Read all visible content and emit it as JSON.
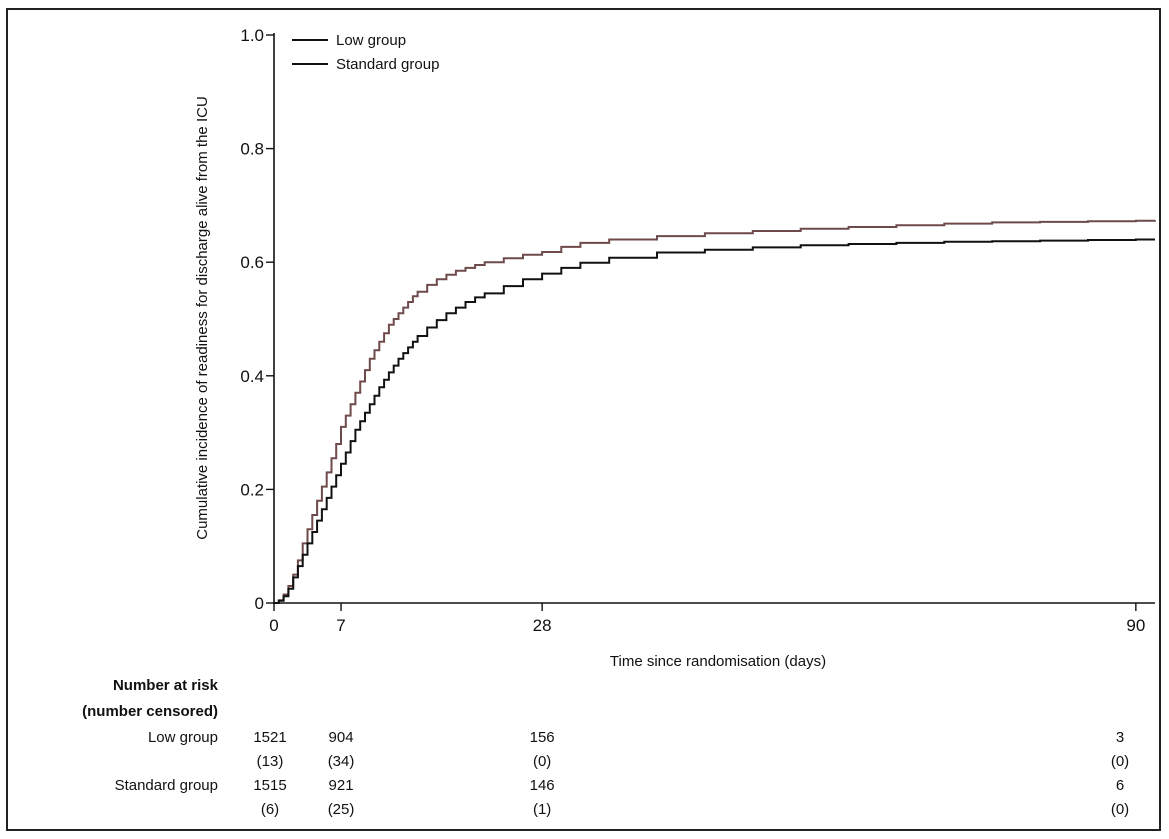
{
  "chart_data": {
    "type": "line",
    "ylabel": "Cumulative incidence of readiness for discharge alive from the ICU",
    "xlabel": "Time since randomisation (days)",
    "xlim": [
      0,
      92
    ],
    "ylim": [
      0,
      1.0
    ],
    "x_ticks": [
      {
        "value": 0,
        "label": "0"
      },
      {
        "value": 7,
        "label": "7"
      },
      {
        "value": 28,
        "label": "28"
      },
      {
        "value": 90,
        "label": "90"
      }
    ],
    "y_ticks": [
      {
        "value": 0,
        "label": "0"
      },
      {
        "value": 0.2,
        "label": "0.2"
      },
      {
        "value": 0.4,
        "label": "0.4"
      },
      {
        "value": 0.6,
        "label": "0.6"
      },
      {
        "value": 0.8,
        "label": "0.8"
      },
      {
        "value": 1.0,
        "label": "1.0"
      }
    ],
    "legend_position": "top-left",
    "series": [
      {
        "name": "Low group",
        "color": "#6e4a4a",
        "x": [
          0,
          0.5,
          1,
          1.5,
          2,
          2.5,
          3,
          3.5,
          4,
          4.5,
          5,
          5.5,
          6,
          6.5,
          7,
          7.5,
          8,
          8.5,
          9,
          9.5,
          10,
          10.5,
          11,
          11.5,
          12,
          12.5,
          13,
          13.5,
          14,
          14.5,
          15,
          16,
          17,
          18,
          19,
          20,
          21,
          22,
          24,
          26,
          28,
          30,
          32,
          35,
          40,
          45,
          50,
          55,
          60,
          65,
          70,
          75,
          80,
          85,
          90,
          92
        ],
        "y": [
          0,
          0.005,
          0.015,
          0.03,
          0.05,
          0.075,
          0.105,
          0.13,
          0.155,
          0.18,
          0.205,
          0.23,
          0.255,
          0.28,
          0.31,
          0.33,
          0.35,
          0.37,
          0.39,
          0.41,
          0.43,
          0.445,
          0.46,
          0.475,
          0.49,
          0.5,
          0.51,
          0.52,
          0.53,
          0.54,
          0.548,
          0.56,
          0.57,
          0.578,
          0.585,
          0.59,
          0.595,
          0.6,
          0.607,
          0.613,
          0.618,
          0.627,
          0.634,
          0.64,
          0.646,
          0.651,
          0.655,
          0.659,
          0.662,
          0.665,
          0.668,
          0.67,
          0.671,
          0.672,
          0.673,
          0.674
        ]
      },
      {
        "name": "Standard group",
        "color": "#111111",
        "x": [
          0,
          0.5,
          1,
          1.5,
          2,
          2.5,
          3,
          3.5,
          4,
          4.5,
          5,
          5.5,
          6,
          6.5,
          7,
          7.5,
          8,
          8.5,
          9,
          9.5,
          10,
          10.5,
          11,
          11.5,
          12,
          12.5,
          13,
          13.5,
          14,
          14.5,
          15,
          16,
          17,
          18,
          19,
          20,
          21,
          22,
          24,
          26,
          28,
          30,
          32,
          35,
          40,
          45,
          50,
          55,
          60,
          65,
          70,
          75,
          80,
          85,
          90,
          92
        ],
        "y": [
          0,
          0.004,
          0.012,
          0.025,
          0.045,
          0.065,
          0.085,
          0.105,
          0.125,
          0.145,
          0.165,
          0.185,
          0.205,
          0.225,
          0.245,
          0.265,
          0.285,
          0.305,
          0.32,
          0.335,
          0.35,
          0.365,
          0.38,
          0.393,
          0.406,
          0.418,
          0.43,
          0.44,
          0.45,
          0.46,
          0.47,
          0.485,
          0.498,
          0.51,
          0.52,
          0.53,
          0.538,
          0.545,
          0.558,
          0.57,
          0.58,
          0.59,
          0.599,
          0.608,
          0.617,
          0.622,
          0.626,
          0.63,
          0.632,
          0.634,
          0.636,
          0.637,
          0.638,
          0.639,
          0.64,
          0.64
        ]
      }
    ],
    "risk_table": {
      "title_line1": "Number at risk",
      "title_line2": "(number censored)",
      "rows": [
        {
          "label": "Low group",
          "at_risk": [
            {
              "x": 0,
              "label": "1521"
            },
            {
              "x": 7,
              "label": "904"
            },
            {
              "x": 28,
              "label": "156"
            },
            {
              "x": 90,
              "label": "3"
            }
          ],
          "censored": [
            {
              "x": 0,
              "label": "(13)"
            },
            {
              "x": 7,
              "label": "(34)"
            },
            {
              "x": 28,
              "label": "(0)"
            },
            {
              "x": 90,
              "label": "(0)"
            }
          ]
        },
        {
          "label": "Standard group",
          "at_risk": [
            {
              "x": 0,
              "label": "1515"
            },
            {
              "x": 7,
              "label": "921"
            },
            {
              "x": 28,
              "label": "146"
            },
            {
              "x": 90,
              "label": "6"
            }
          ],
          "censored": [
            {
              "x": 0,
              "label": "(6)"
            },
            {
              "x": 7,
              "label": "(25)"
            },
            {
              "x": 28,
              "label": "(1)"
            },
            {
              "x": 90,
              "label": "(0)"
            }
          ]
        }
      ]
    }
  }
}
